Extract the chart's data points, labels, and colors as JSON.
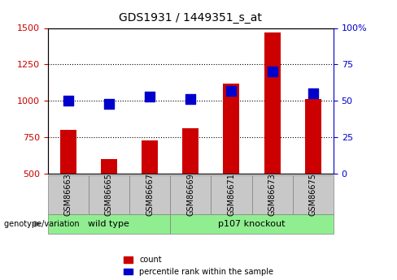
{
  "title": "GDS1931 / 1449351_s_at",
  "samples": [
    "GSM86663",
    "GSM86665",
    "GSM86667",
    "GSM86669",
    "GSM86671",
    "GSM86673",
    "GSM86675"
  ],
  "count_values": [
    800,
    600,
    730,
    810,
    1120,
    1470,
    1010
  ],
  "percentile_values": [
    50,
    48,
    53,
    51,
    57,
    70,
    55
  ],
  "ylim_left": [
    500,
    1500
  ],
  "ylim_right": [
    0,
    100
  ],
  "yticks_left": [
    500,
    750,
    1000,
    1250,
    1500
  ],
  "yticks_right": [
    0,
    25,
    50,
    75,
    100
  ],
  "groups": [
    {
      "label": "wild type",
      "indices": [
        0,
        1,
        2
      ],
      "color": "#90ee90"
    },
    {
      "label": "p107 knockout",
      "indices": [
        3,
        4,
        5,
        6
      ],
      "color": "#7fc97f"
    }
  ],
  "bar_color": "#cc0000",
  "dot_color": "#0000cc",
  "background_color": "#f0f0f0",
  "group_box_color": "#c8c8c8",
  "grid_color": "#000000",
  "left_tick_color": "#cc0000",
  "right_tick_color": "#0000cc",
  "bar_width": 0.4,
  "dot_size": 80
}
